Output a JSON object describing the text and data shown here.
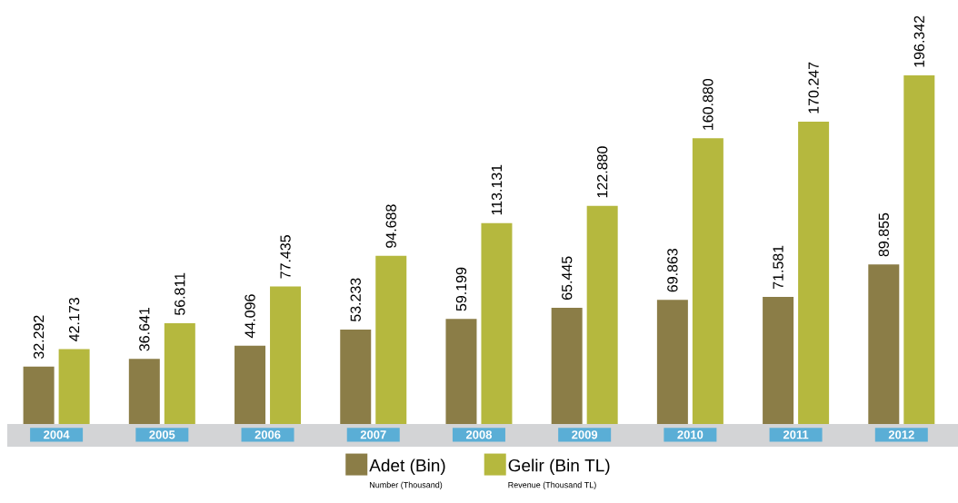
{
  "chart_data": {
    "type": "bar",
    "categories": [
      "2004",
      "2005",
      "2006",
      "2007",
      "2008",
      "2009",
      "2010",
      "2011",
      "2012"
    ],
    "series": [
      {
        "name": "Adet (Bin)",
        "color": "#8b7d47",
        "values": [
          32292,
          36641,
          44096,
          53233,
          59199,
          65445,
          69863,
          71581,
          89855
        ],
        "value_labels": [
          "32.292",
          "36.641",
          "44.096",
          "53.233",
          "59.199",
          "65.445",
          "69.863",
          "71.581",
          "89.855"
        ]
      },
      {
        "name": "Gelir (Bin TL)",
        "color": "#b5b83e",
        "values": [
          42173,
          56811,
          77435,
          94688,
          113131,
          122880,
          160880,
          170247,
          196342
        ],
        "value_labels": [
          "42.173",
          "56.811",
          "77.435",
          "94.688",
          "113.131",
          "122.880",
          "160.880",
          "170.247",
          "196.342"
        ]
      }
    ],
    "annotations": [
      "Number (Thousand)",
      "Revenue (Thousand TL)"
    ],
    "legend": "bottom",
    "grid": false
  }
}
